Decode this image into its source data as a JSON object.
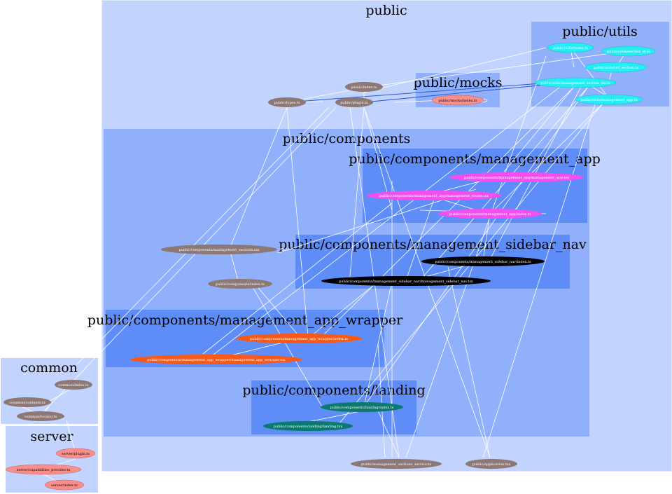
{
  "clusters": {
    "public": "public",
    "utils": "public/utils",
    "mocks": "public/mocks",
    "components": "public/components",
    "management_app": "public/components/management_app",
    "sidebar_nav": "public/components/management_sidebar_nav",
    "app_wrapper": "public/components/management_app_wrapper",
    "landing": "public/components/landing",
    "common": "common",
    "server": "server"
  },
  "nodes": {
    "utils_index": "public/utils/index.ts",
    "utils_section_id": "public/utils/section_id.ts",
    "utils_url_section": "public/utils/url_section.ts",
    "utils_mgmt_section_ids": "public/utils/management_section_ids.ts",
    "utils_mgmt_app": "public/utils/management_app.ts",
    "public_index": "public/index.ts",
    "public_types": "public/types.ts",
    "public_plugin": "public/plugin.ts",
    "mocks_index": "public/mocks/index.ts",
    "mgmt_app_mgmt_app": "public/components/management_app/management_app.tsx",
    "mgmt_app_router": "public/components/management_app/management_router.tsx",
    "mgmt_app_index": "public/components/management_app/index.ts",
    "mgmt_sections": "public/components/management_sections.tsx",
    "sidebar_index": "public/components/management_sidebar_nav/index.ts",
    "sidebar_nav": "public/components/management_sidebar_nav/management_sidebar_nav.tsx",
    "components_index": "public/components/index.ts",
    "wrapper_index": "public/components/management_app_wrapper/index.ts",
    "wrapper_file": "public/components/management_app_wrapper/management_app_wrapper.tsx",
    "landing_index": "public/components/landing/index.ts",
    "landing_file": "public/components/landing/landing.tsx",
    "sections_service": "public/management_sections_service.ts",
    "application": "public/application.tsx",
    "common_index": "common/index.ts",
    "common_contants": "common/contants.ts",
    "common_locator": "common/locator.ts",
    "server_plugin": "server/plugin.ts",
    "server_capabilities": "server/capabilities_provider.ts",
    "server_index": "server/index.ts"
  },
  "colors": {
    "cluster_outer": "#c2d3fd",
    "cluster_mid": "#90b0fc",
    "cluster_inner": "#5f8df8",
    "node_brown": "#8c7874",
    "node_salmon": "#f98e8a",
    "node_cyan": "#26ecf4",
    "node_magenta": "#f44ef0",
    "node_black": "#000000",
    "node_orange": "#fa5814",
    "node_teal": "#0a7a6e"
  }
}
